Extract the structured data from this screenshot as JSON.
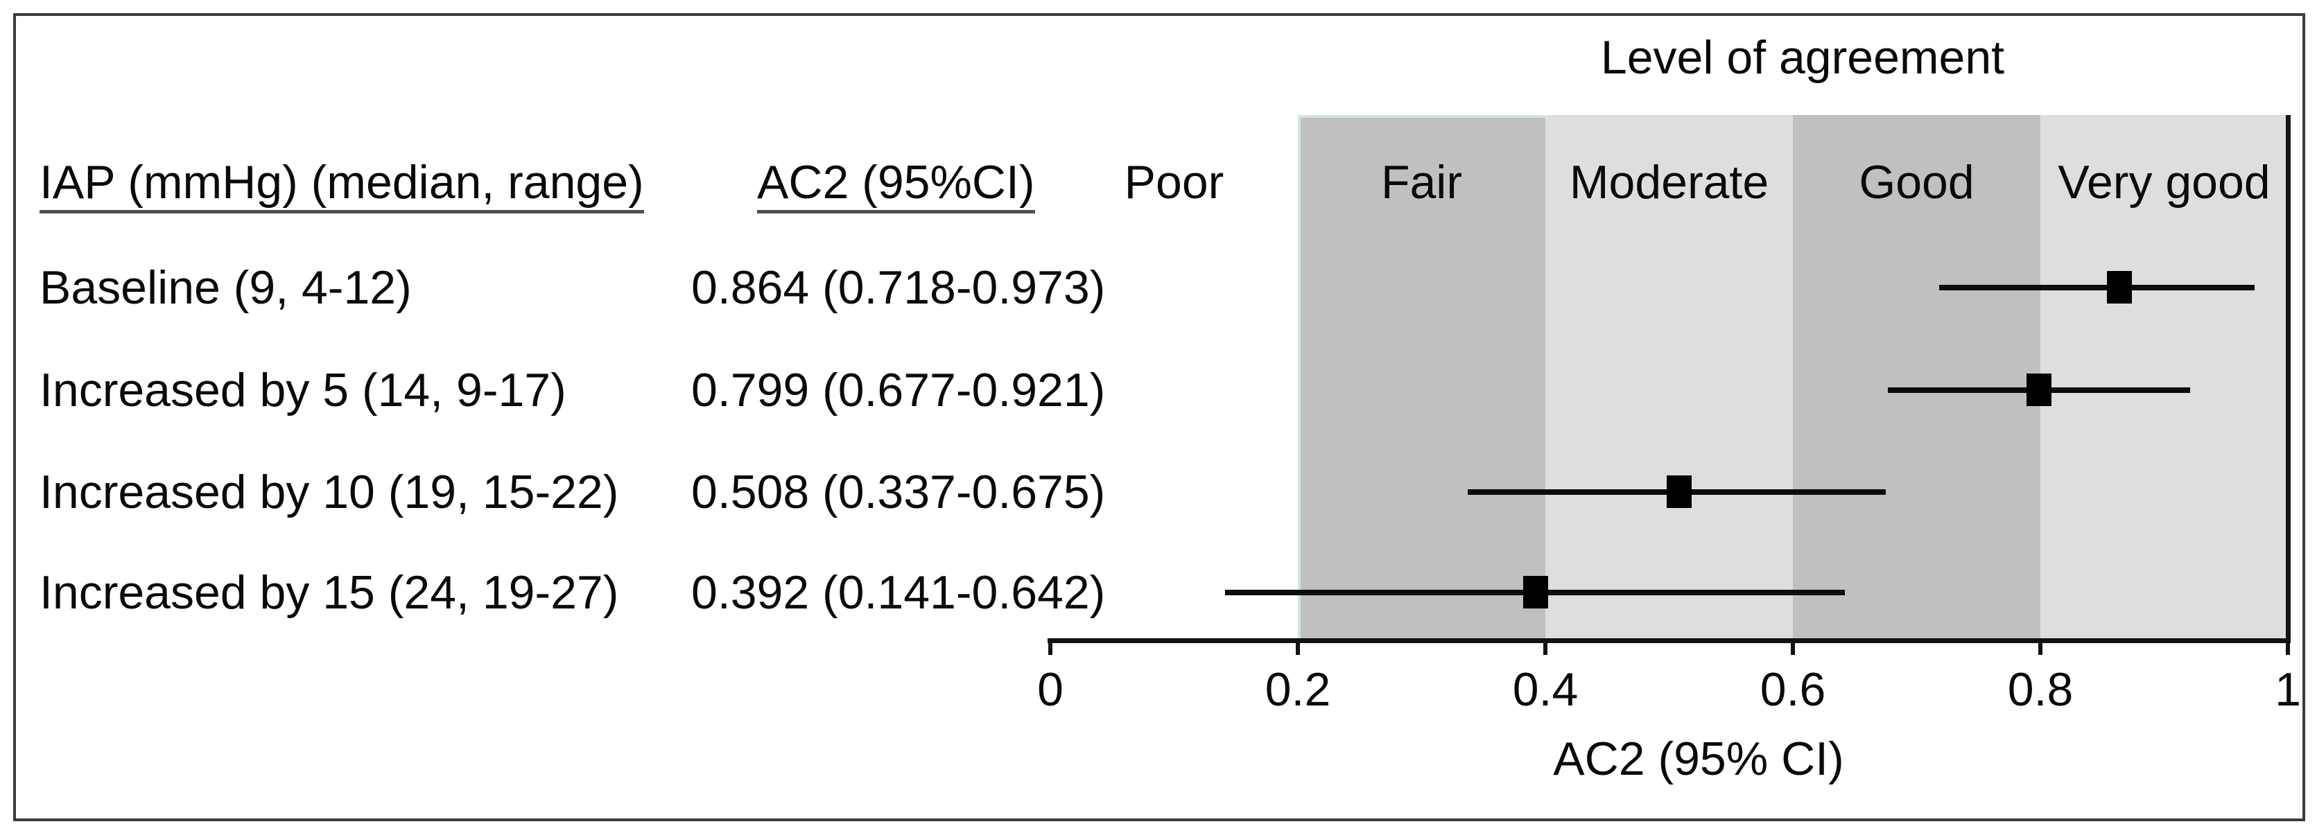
{
  "figure": {
    "title": "Level of agreement",
    "xlabel": "AC2 (95% CI)"
  },
  "table": {
    "col1_header": "IAP (mmHg) (median, range)",
    "col2_header": "AC2 (95%CI)",
    "rows": [
      {
        "label": "Baseline (9, 4-12)",
        "value_text": "0.864 (0.718-0.973)"
      },
      {
        "label": "Increased by 5 (14, 9-17)",
        "value_text": "0.799 (0.677-0.921)"
      },
      {
        "label": "Increased by 10 (19, 15-22)",
        "value_text": "0.508 (0.337-0.675)"
      },
      {
        "label": "Increased by 15 (24, 19-27)",
        "value_text": "0.392 (0.141-0.642)"
      }
    ]
  },
  "chart_data": {
    "type": "scatter",
    "subtype": "forest-plot",
    "title": "Level of agreement",
    "xlabel": "AC2 (95% CI)",
    "xlim": [
      0,
      1
    ],
    "xticks": [
      {
        "value": 0,
        "label": "0"
      },
      {
        "value": 0.2,
        "label": "0.2"
      },
      {
        "value": 0.4,
        "label": "0.4"
      },
      {
        "value": 0.6,
        "label": "0.6"
      },
      {
        "value": 0.8,
        "label": "0.8"
      },
      {
        "value": 1,
        "label": "1"
      }
    ],
    "categories": [
      "Baseline (9, 4-12)",
      "Increased by 5 (14, 9-17)",
      "Increased by 10 (19, 15-22)",
      "Increased by 15 (24, 19-27)"
    ],
    "values": [
      0.864,
      0.799,
      0.508,
      0.392
    ],
    "ci_low": [
      0.718,
      0.677,
      0.337,
      0.141
    ],
    "ci_high": [
      0.973,
      0.921,
      0.675,
      0.642
    ],
    "agreement_bands": [
      {
        "label": "Poor",
        "range": [
          0,
          0.2
        ],
        "fill": null
      },
      {
        "label": "Fair",
        "range": [
          0.2,
          0.4
        ],
        "fill": "#c0c0c0",
        "edge": "#cfe9d8"
      },
      {
        "label": "Moderate",
        "range": [
          0.4,
          0.6
        ],
        "fill": "#dedede"
      },
      {
        "label": "Good",
        "range": [
          0.6,
          0.8
        ],
        "fill": "#c0c0c0"
      },
      {
        "label": "Very good",
        "range": [
          0.8,
          1.0
        ],
        "fill": "#dedede"
      }
    ],
    "marker_color": "#000000",
    "line_color": "#0c0c0c",
    "grid": false,
    "legend": null
  }
}
